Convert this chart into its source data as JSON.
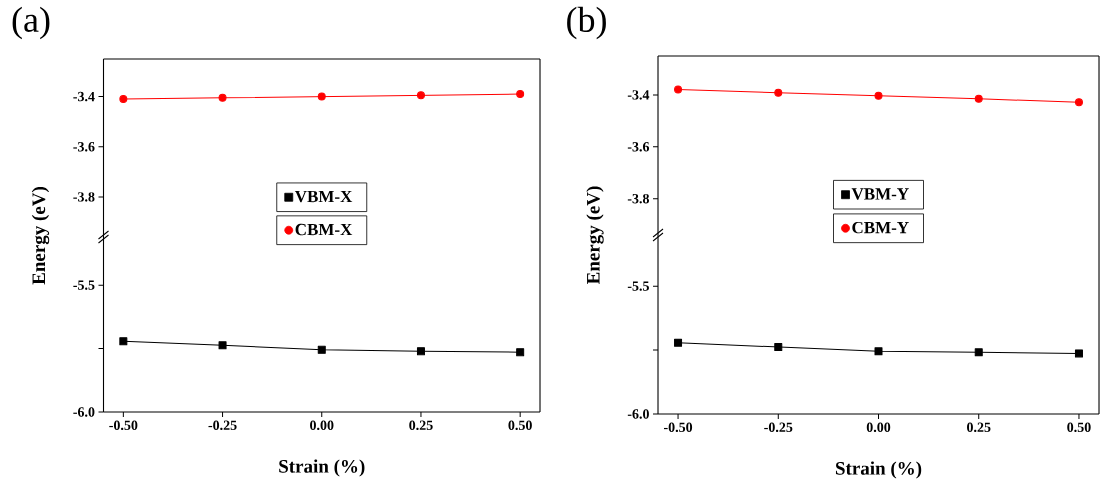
{
  "chart_data": [
    {
      "type": "line",
      "title": "(a)",
      "ylabel": "Energy (eV)",
      "x": [
        -0.5,
        -0.25,
        0,
        0.25,
        0.5
      ],
      "xlim": [
        -0.55,
        0.55
      ],
      "ylim": [
        -3.96,
        -3.25
      ],
      "yticks": [
        -3.8,
        -3.6,
        -3.4
      ],
      "tick_labels": "y",
      "legend": "bottom",
      "line_style": "solid",
      "series": [
        {
          "name": "CBM-X",
          "color": "#ff0000",
          "marker": "circle",
          "values": [
            -3.41,
            -3.405,
            -3.4,
            -3.395,
            -3.39
          ]
        }
      ]
    },
    {
      "type": "line",
      "xlabel": "Strain (%)",
      "x": [
        -0.5,
        -0.25,
        0,
        0.25,
        0.5
      ],
      "xlim": [
        -0.55,
        0.55
      ],
      "xticks": [
        {
          "value": -0.5,
          "label": "-0.50"
        },
        {
          "value": -0.25,
          "label": "-0.25"
        },
        {
          "value": 0,
          "label": "0.00"
        },
        {
          "value": 0.25,
          "label": "0.25"
        },
        {
          "value": 0.5,
          "label": "0.50"
        }
      ],
      "ylim": [
        -6.0,
        -5.31
      ],
      "yticks": [
        {
          "value": -6,
          "label": "-6.0"
        },
        {
          "value": -5.75,
          "label": null
        },
        {
          "value": -5.5,
          "label": "-5.5"
        }
      ],
      "legend": "top",
      "line_style": "solid",
      "series": [
        {
          "name": "VBM-X",
          "color": "#000000",
          "marker": "square",
          "values": [
            -5.721,
            -5.737,
            -5.755,
            -5.76,
            -5.764
          ]
        }
      ]
    },
    {
      "type": "line",
      "title": "(b)",
      "ylabel": "Energy (eV)",
      "x": [
        -0.5,
        -0.25,
        0,
        0.25,
        0.5
      ],
      "xlim": [
        -0.55,
        0.55
      ],
      "ylim": [
        -3.94,
        -3.25
      ],
      "yticks": [
        -3.8,
        -3.6,
        -3.4
      ],
      "tick_labels": "y",
      "legend": "bottom",
      "line_style": "solid",
      "series": [
        {
          "name": "CBM-Y",
          "color": "#ff0000",
          "marker": "circle",
          "values": [
            -3.379,
            -3.392,
            -3.403,
            -3.415,
            -3.428
          ]
        }
      ]
    },
    {
      "type": "line",
      "xlabel": "Strain (%)",
      "x": [
        -0.5,
        -0.25,
        0,
        0.25,
        0.5
      ],
      "xlim": [
        -0.55,
        0.55
      ],
      "xticks": [
        {
          "value": -0.5,
          "label": "-0.50"
        },
        {
          "value": -0.25,
          "label": "-0.25"
        },
        {
          "value": 0,
          "label": "0.00"
        },
        {
          "value": 0.25,
          "label": "0.25"
        },
        {
          "value": 0.5,
          "label": "0.50"
        }
      ],
      "ylim": [
        -6.0,
        -5.3
      ],
      "yticks": [
        {
          "value": -6,
          "label": "-6.0"
        },
        {
          "value": -5.75,
          "label": null
        },
        {
          "value": -5.5,
          "label": "-5.5"
        }
      ],
      "legend": "top",
      "line_style": "solid",
      "series": [
        {
          "name": "VBM-Y",
          "color": "#000000",
          "marker": "square",
          "values": [
            -5.721,
            -5.738,
            -5.755,
            -5.759,
            -5.763
          ]
        }
      ]
    }
  ]
}
